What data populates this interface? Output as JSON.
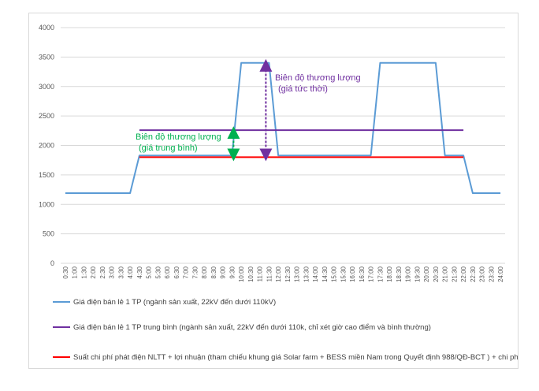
{
  "chart_data": {
    "type": "line",
    "ylim": [
      0,
      4000
    ],
    "yticks": [
      0,
      500,
      1000,
      1500,
      2000,
      2500,
      3000,
      3500,
      4000
    ],
    "x": [
      "0:30",
      "1:00",
      "1:30",
      "2:00",
      "2:30",
      "3:00",
      "3:30",
      "4:00",
      "4:30",
      "5:00",
      "5:30",
      "6:00",
      "6:30",
      "7:00",
      "7:30",
      "8:00",
      "8:30",
      "9:00",
      "9:30",
      "10:00",
      "10:30",
      "11:00",
      "11:30",
      "12:00",
      "12:30",
      "13:00",
      "13:30",
      "14:00",
      "14:30",
      "15:00",
      "15:30",
      "16:00",
      "16:30",
      "17:00",
      "17:30",
      "18:00",
      "18:30",
      "19:00",
      "19:30",
      "20:00",
      "20:30",
      "21:00",
      "21:30",
      "22:00",
      "22:30",
      "23:00",
      "23:30",
      "24:00"
    ],
    "grid": true,
    "legend_position": "bottom",
    "series": [
      {
        "name": "Giá điện bán lẻ 1 TP (ngành sản xuất, 22kV đến dưới 110kV)",
        "color": "#5b9bd5",
        "values": [
          1190,
          1190,
          1190,
          1190,
          1190,
          1190,
          1190,
          1190,
          1830,
          1830,
          1830,
          1830,
          1830,
          1830,
          1830,
          1830,
          1830,
          1830,
          1830,
          3400,
          3400,
          3400,
          3400,
          1830,
          1830,
          1830,
          1830,
          1830,
          1830,
          1830,
          1830,
          1830,
          1830,
          1830,
          3400,
          3400,
          3400,
          3400,
          3400,
          3400,
          3400,
          1830,
          1830,
          1830,
          1190,
          1190,
          1190,
          1190
        ]
      },
      {
        "name": "Giá điện bán lẻ 1 TP trung bình (ngành sản xuất, 22kV đến dưới 110k, chỉ xét giờ cao điểm và bình thường)",
        "color": "#7030a0",
        "values": [
          null,
          null,
          null,
          null,
          null,
          null,
          null,
          null,
          2260,
          2260,
          2260,
          2260,
          2260,
          2260,
          2260,
          2260,
          2260,
          2260,
          2260,
          2260,
          2260,
          2260,
          2260,
          2260,
          2260,
          2260,
          2260,
          2260,
          2260,
          2260,
          2260,
          2260,
          2260,
          2260,
          2260,
          2260,
          2260,
          2260,
          2260,
          2260,
          2260,
          2260,
          2260,
          2260,
          null,
          null,
          null,
          null
        ]
      },
      {
        "name": "Suất chi phí phát điện NLTT  + lợi nhuận (tham chiếu khung giá Solar farm + BESS miền Nam trong Quyết định 988/QĐ-BCT ) + chi phí khác",
        "color": "#ff0000",
        "values": [
          null,
          null,
          null,
          null,
          null,
          null,
          null,
          null,
          1800,
          1800,
          1800,
          1800,
          1800,
          1800,
          1800,
          1800,
          1800,
          1800,
          1800,
          1800,
          1800,
          1800,
          1800,
          1800,
          1800,
          1800,
          1800,
          1800,
          1800,
          1800,
          1800,
          1800,
          1800,
          1800,
          1800,
          1800,
          1800,
          1800,
          1800,
          1800,
          1800,
          1800,
          1800,
          1800,
          null,
          null,
          null,
          null
        ]
      }
    ],
    "annotations": [
      {
        "lines": [
          "Biên độ thương lượng",
          "(giá trung bình)"
        ],
        "color": "#00b050",
        "from": 1800,
        "to": 2260,
        "at": "9:30"
      },
      {
        "lines": [
          "Biên độ thương lượng",
          " (giá tức thời)"
        ],
        "color": "#7030a0",
        "from": 1800,
        "to": 3400,
        "at": "11:30"
      }
    ]
  }
}
